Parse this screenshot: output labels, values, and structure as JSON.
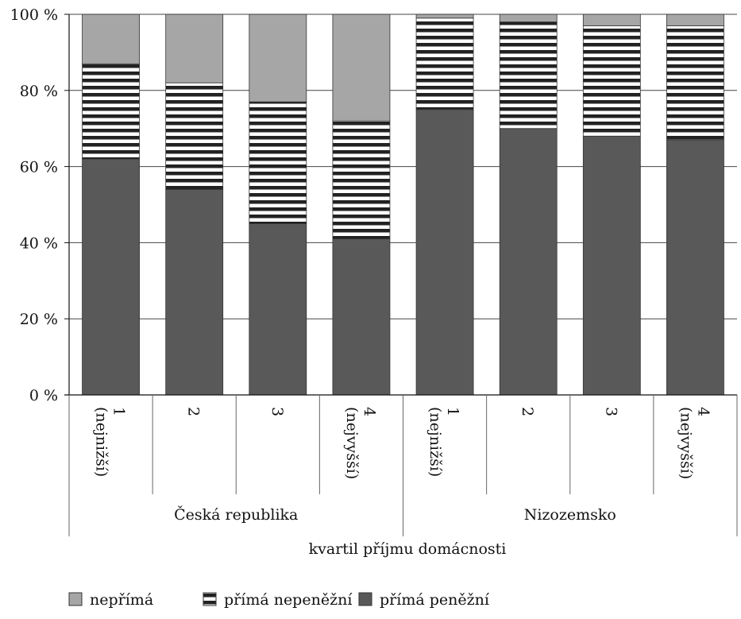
{
  "chart_data": {
    "type": "bar",
    "stacked": true,
    "percent": true,
    "x_groups": [
      {
        "name": "Česká republika",
        "categories": [
          "1\n(nejnižší)",
          "2",
          "3",
          "4\n(nejvyšší)"
        ]
      },
      {
        "name": "Nizozemsko",
        "categories": [
          "1\n(nejnižší)",
          "2",
          "3",
          "4\n(nejvyšší)"
        ]
      }
    ],
    "categories": [
      "1\n(nejnižší)",
      "2",
      "3",
      "4\n(nejvyšší)",
      "1\n(nejnižší)",
      "2",
      "3",
      "4\n(nejvyšší)"
    ],
    "series": [
      {
        "name": "přímá peněžní",
        "values": [
          62,
          54,
          45,
          41,
          75,
          70,
          68,
          67
        ],
        "color": "#595959",
        "pattern": "solid"
      },
      {
        "name": "přímá nepeněžní",
        "values": [
          25,
          28,
          32,
          31,
          24,
          28,
          29,
          30
        ],
        "color": "#ffffff",
        "pattern": "horizontal-stripes"
      },
      {
        "name": "nepřímá",
        "values": [
          13,
          18,
          23,
          28,
          1,
          2,
          3,
          3
        ],
        "color": "#a6a6a6",
        "pattern": "solid"
      }
    ],
    "y_ticks": [
      "0 %",
      "20 %",
      "40 %",
      "60 %",
      "80 %",
      "100 %"
    ],
    "ylim": [
      0,
      100
    ],
    "xlabel": "kvartil příjmu domácnosti",
    "ylabel": "",
    "grid": true,
    "legend_position": "bottom-left",
    "legend": [
      {
        "series": 2,
        "label": "nepřímá"
      },
      {
        "series": 1,
        "label": "přímá nepeněžní"
      },
      {
        "series": 0,
        "label": "přímá peněžní"
      }
    ]
  }
}
